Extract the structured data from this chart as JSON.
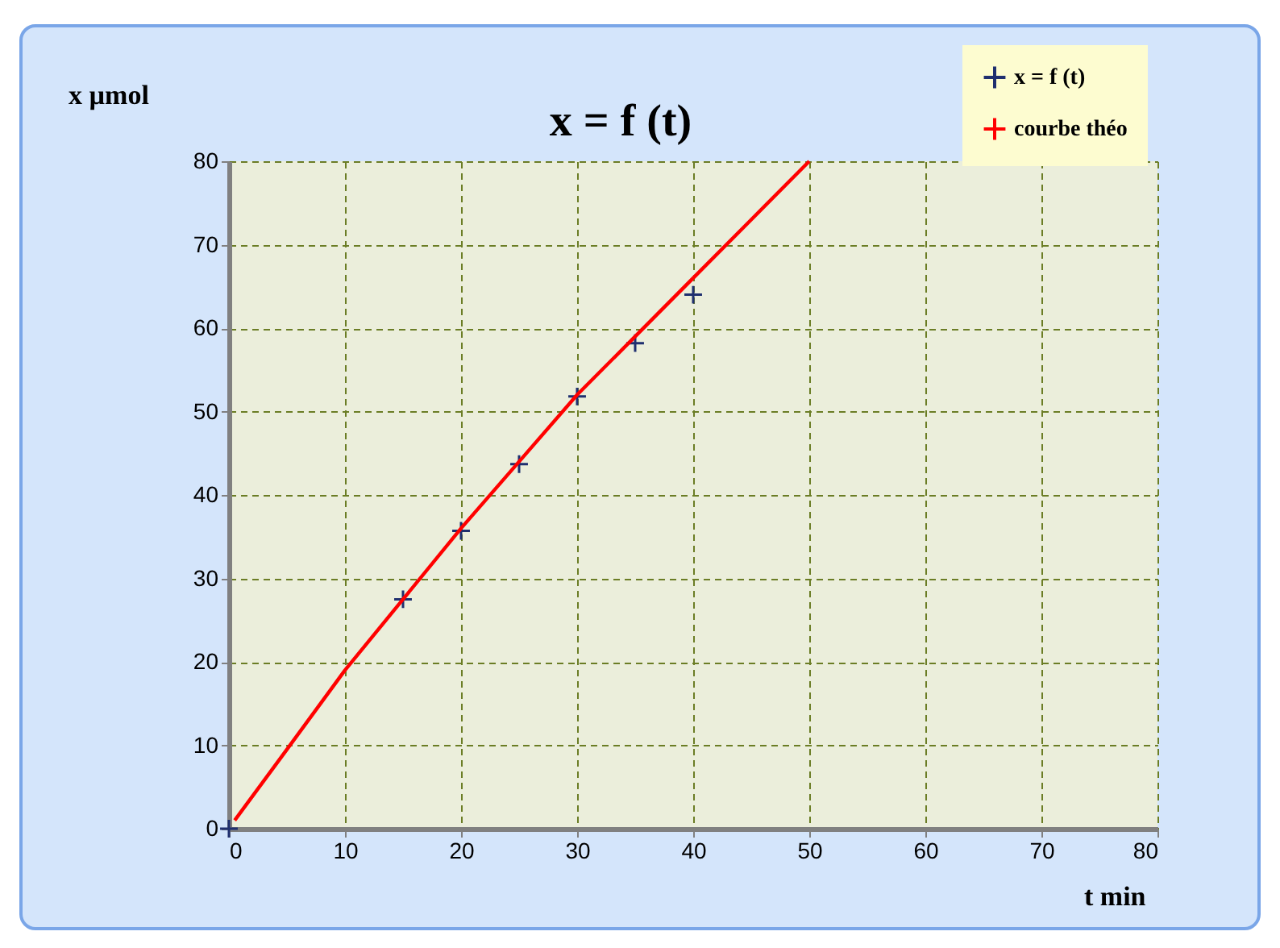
{
  "chart_data": {
    "type": "scatter",
    "title": "x = f (t)",
    "xlabel": "t min",
    "ylabel": "x µmol",
    "xlim": [
      0,
      80
    ],
    "ylim": [
      0,
      80
    ],
    "xticks": [
      0,
      10,
      20,
      30,
      40,
      50,
      60,
      70,
      80
    ],
    "yticks": [
      0,
      10,
      20,
      30,
      40,
      50,
      60,
      70,
      80
    ],
    "grid": true,
    "legend": "top right",
    "series": [
      {
        "name": "x = f (t)",
        "marker": "cross",
        "color": "#1f2f6f",
        "x": [
          0,
          15,
          20,
          25,
          30,
          35,
          40
        ],
        "values": [
          0,
          27.5,
          35.7,
          43.7,
          51.8,
          58.2,
          64
        ]
      },
      {
        "name": "courbe théo",
        "type": "line",
        "line_style": "solid",
        "marker": "none",
        "color": "#ff0000",
        "x": [
          0.5,
          5,
          10,
          15,
          20,
          25,
          30,
          35,
          40,
          45,
          50
        ],
        "values": [
          1,
          9.5,
          19,
          27.5,
          36,
          44,
          52,
          59,
          66,
          73,
          80
        ]
      }
    ]
  }
}
